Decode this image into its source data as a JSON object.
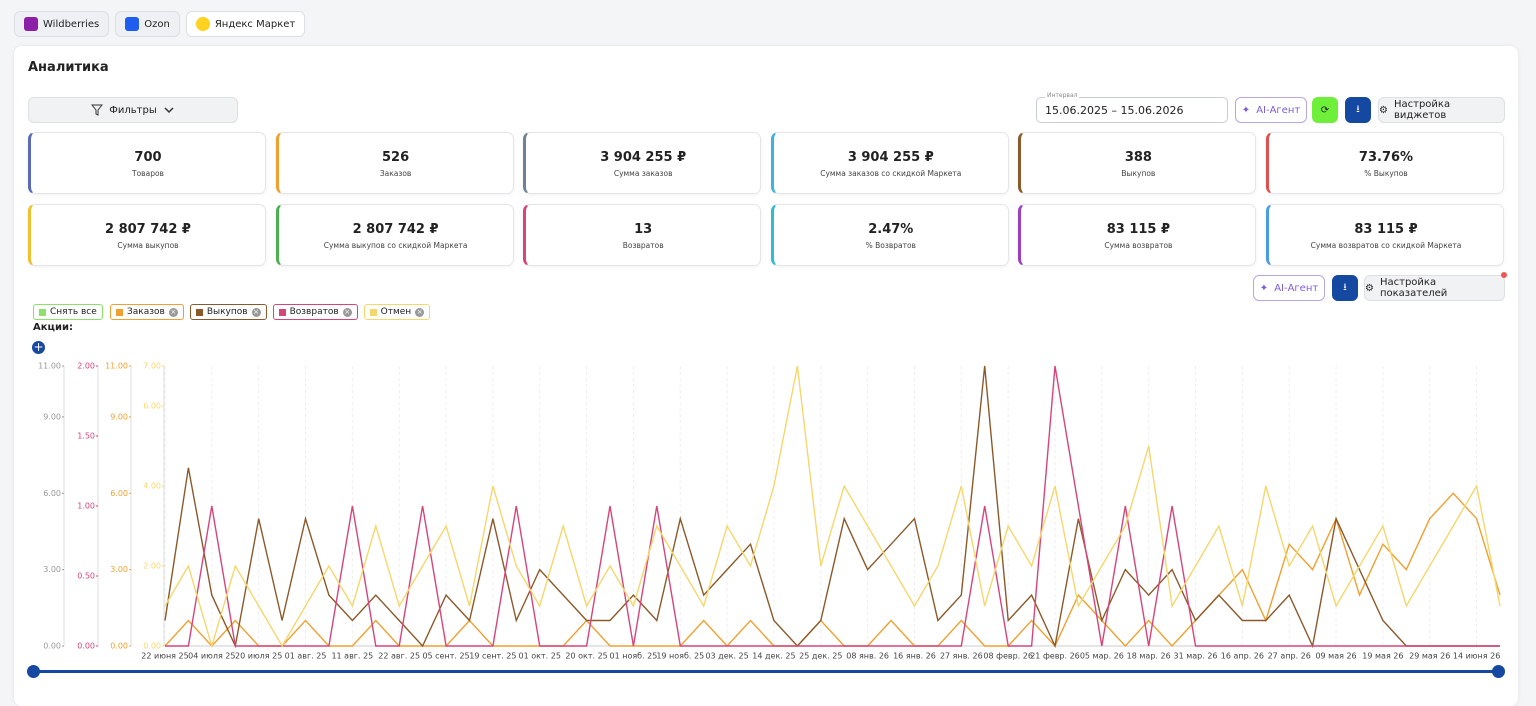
{
  "header": {
    "tabs": [
      "Wildberries",
      "Ozon",
      "Яндекс Маркет"
    ]
  },
  "panel": {
    "title": "Аналитика",
    "filters": "Фильтры",
    "interval_label": "Интервал",
    "interval": "15.06.2025 – 15.06.2026",
    "ai_agent": "AI-Агент",
    "widget_settings": "Настройка виджетов",
    "metric_settings": "Настройка показателей",
    "clear_all": "Снять все",
    "promotions": "Акции:"
  },
  "kpis": [
    {
      "value": "700",
      "label": "Товаров",
      "color": "#5b6bb5"
    },
    {
      "value": "526",
      "label": "Заказов",
      "color": "#f0a030"
    },
    {
      "value": "3 904 255 ₽",
      "label": "Сумма заказов",
      "color": "#6f8296"
    },
    {
      "value": "3 904 255 ₽",
      "label": "Сумма заказов со скидкой Маркета",
      "color": "#3cb4e0"
    },
    {
      "value": "388",
      "label": "Выкупов",
      "color": "#8b5a2b"
    },
    {
      "value": "73.76%",
      "label": "% Выкупов",
      "color": "#e05050"
    },
    {
      "value": "2 807 742 ₽",
      "label": "Сумма выкупов",
      "color": "#f0c030"
    },
    {
      "value": "2 807 742 ₽",
      "label": "Сумма выкупов со скидкой Маркета",
      "color": "#4caf50"
    },
    {
      "value": "13",
      "label": "Возвратов",
      "color": "#d6457a"
    },
    {
      "value": "2.47%",
      "label": "% Возвратов",
      "color": "#30bcd0"
    },
    {
      "value": "83 115 ₽",
      "label": "Сумма возвратов",
      "color": "#9c3fc0"
    },
    {
      "value": "83 115 ₽",
      "label": "Сумма возвратов со скидкой Маркета",
      "color": "#4a9de0"
    }
  ],
  "chart_data": {
    "type": "line",
    "grid": true,
    "x": [
      "22 июня 25",
      null,
      "04 июля 25",
      null,
      "20 июля 25",
      null,
      "01 авг. 25",
      null,
      "11 авг. 25",
      null,
      "22 авг. 25",
      null,
      "05 сент. 25",
      null,
      "19 сент. 25",
      null,
      "01 окт. 25",
      null,
      "20 окт. 25",
      null,
      "01 нояб. 25",
      null,
      "19 нояб. 25",
      null,
      "03 дек. 25",
      null,
      "14 дек. 25",
      null,
      "25 дек. 25",
      null,
      "08 янв. 26",
      null,
      "16 янв. 26",
      null,
      "27 янв. 26",
      null,
      "08 февр. 26",
      null,
      "21 февр. 26",
      null,
      "05 мар. 26",
      null,
      "18 мар. 26",
      null,
      "31 мар. 26",
      null,
      "16 апр. 26",
      null,
      "27 апр. 26",
      null,
      "09 мая 26",
      null,
      "19 мая 26",
      null,
      "29 мая 26",
      null,
      "14 июня 26",
      null
    ],
    "ylim": [
      0,
      11
    ],
    "yticks": [
      {
        "value": 0,
        "label": "0.00"
      },
      {
        "value": 3,
        "label": "3.00"
      },
      {
        "value": 6,
        "label": "6.00"
      },
      {
        "value": 9,
        "label": "9.00"
      },
      {
        "value": 11,
        "label": "11.00"
      }
    ],
    "ycolor": "#999999",
    "y2lim": [
      0,
      2
    ],
    "y2ticks": [
      {
        "value": 0,
        "label": "0.00"
      },
      {
        "value": 0.5,
        "label": "0.50"
      },
      {
        "value": 1,
        "label": "1.00"
      },
      {
        "value": 1.5,
        "label": "1.50"
      },
      {
        "value": 2,
        "label": "2.00"
      }
    ],
    "y2color": "#d6457a",
    "y3lim": [
      0,
      11
    ],
    "y3ticks": [
      {
        "value": 0,
        "label": "0.00"
      },
      {
        "value": 3,
        "label": "3.00"
      },
      {
        "value": 6,
        "label": "6.00"
      },
      {
        "value": 9,
        "label": "9.00"
      },
      {
        "value": 11,
        "label": "11.00"
      }
    ],
    "y3color": "#f0a030",
    "y4lim": [
      0,
      7
    ],
    "y4ticks": [
      {
        "value": 0,
        "label": "0.00"
      },
      {
        "value": 2,
        "label": "2.00"
      },
      {
        "value": 4,
        "label": "4.00"
      },
      {
        "value": 6,
        "label": "6.00"
      },
      {
        "value": 7,
        "label": "7.00"
      }
    ],
    "y4color": "#f5d76e",
    "series": [
      {
        "name": "Заказов",
        "color": "#f0a030",
        "axis": "y3",
        "values": [
          0,
          1,
          0,
          1,
          0,
          0,
          1,
          0,
          0,
          1,
          0,
          0,
          0,
          1,
          0,
          0,
          0,
          0,
          1,
          0,
          0,
          0,
          0,
          1,
          0,
          1,
          0,
          0,
          1,
          0,
          0,
          1,
          0,
          0,
          1,
          0,
          0,
          1,
          0,
          2,
          1,
          0,
          1,
          0,
          1,
          2,
          3,
          1,
          4,
          3,
          5,
          2,
          4,
          3,
          5,
          6,
          5,
          2
        ]
      },
      {
        "name": "Выкупов",
        "color": "#8b5a2b",
        "axis": "y",
        "values": [
          1,
          7,
          2,
          0,
          5,
          1,
          5,
          2,
          1,
          2,
          1,
          0,
          2,
          1,
          5,
          1,
          3,
          2,
          1,
          1,
          2,
          1,
          5,
          2,
          3,
          4,
          1,
          0,
          1,
          5,
          3,
          4,
          5,
          1,
          2,
          11,
          1,
          2,
          0,
          5,
          1,
          3,
          2,
          3,
          1,
          2,
          1,
          1,
          2,
          0,
          5,
          3,
          1,
          0,
          0,
          0,
          0,
          0
        ]
      },
      {
        "name": "Возвратов",
        "color": "#d6457a",
        "axis": "y2",
        "values": [
          0,
          0,
          1,
          0,
          0,
          0,
          0,
          0,
          1,
          0,
          0,
          1,
          0,
          0,
          0,
          1,
          0,
          0,
          0,
          1,
          0,
          1,
          0,
          0,
          0,
          0,
          0,
          0,
          0,
          0,
          0,
          0,
          0,
          0,
          0,
          1,
          0,
          0,
          2,
          1,
          0,
          1,
          0,
          1,
          0,
          0,
          0,
          0,
          0,
          0,
          0,
          0,
          0,
          0,
          0,
          0,
          0,
          0
        ]
      },
      {
        "name": "Отмен",
        "color": "#f5d76e",
        "axis": "y4",
        "values": [
          1,
          2,
          0,
          2,
          1,
          0,
          1,
          2,
          1,
          3,
          1,
          2,
          3,
          1,
          4,
          2,
          1,
          3,
          1,
          2,
          1,
          3,
          2,
          1,
          3,
          2,
          4,
          7,
          2,
          4,
          3,
          2,
          1,
          2,
          4,
          1,
          3,
          2,
          4,
          1,
          2,
          3,
          5,
          1,
          2,
          3,
          1,
          4,
          2,
          3,
          1,
          2,
          3,
          1,
          2,
          3,
          4,
          1
        ]
      }
    ]
  }
}
